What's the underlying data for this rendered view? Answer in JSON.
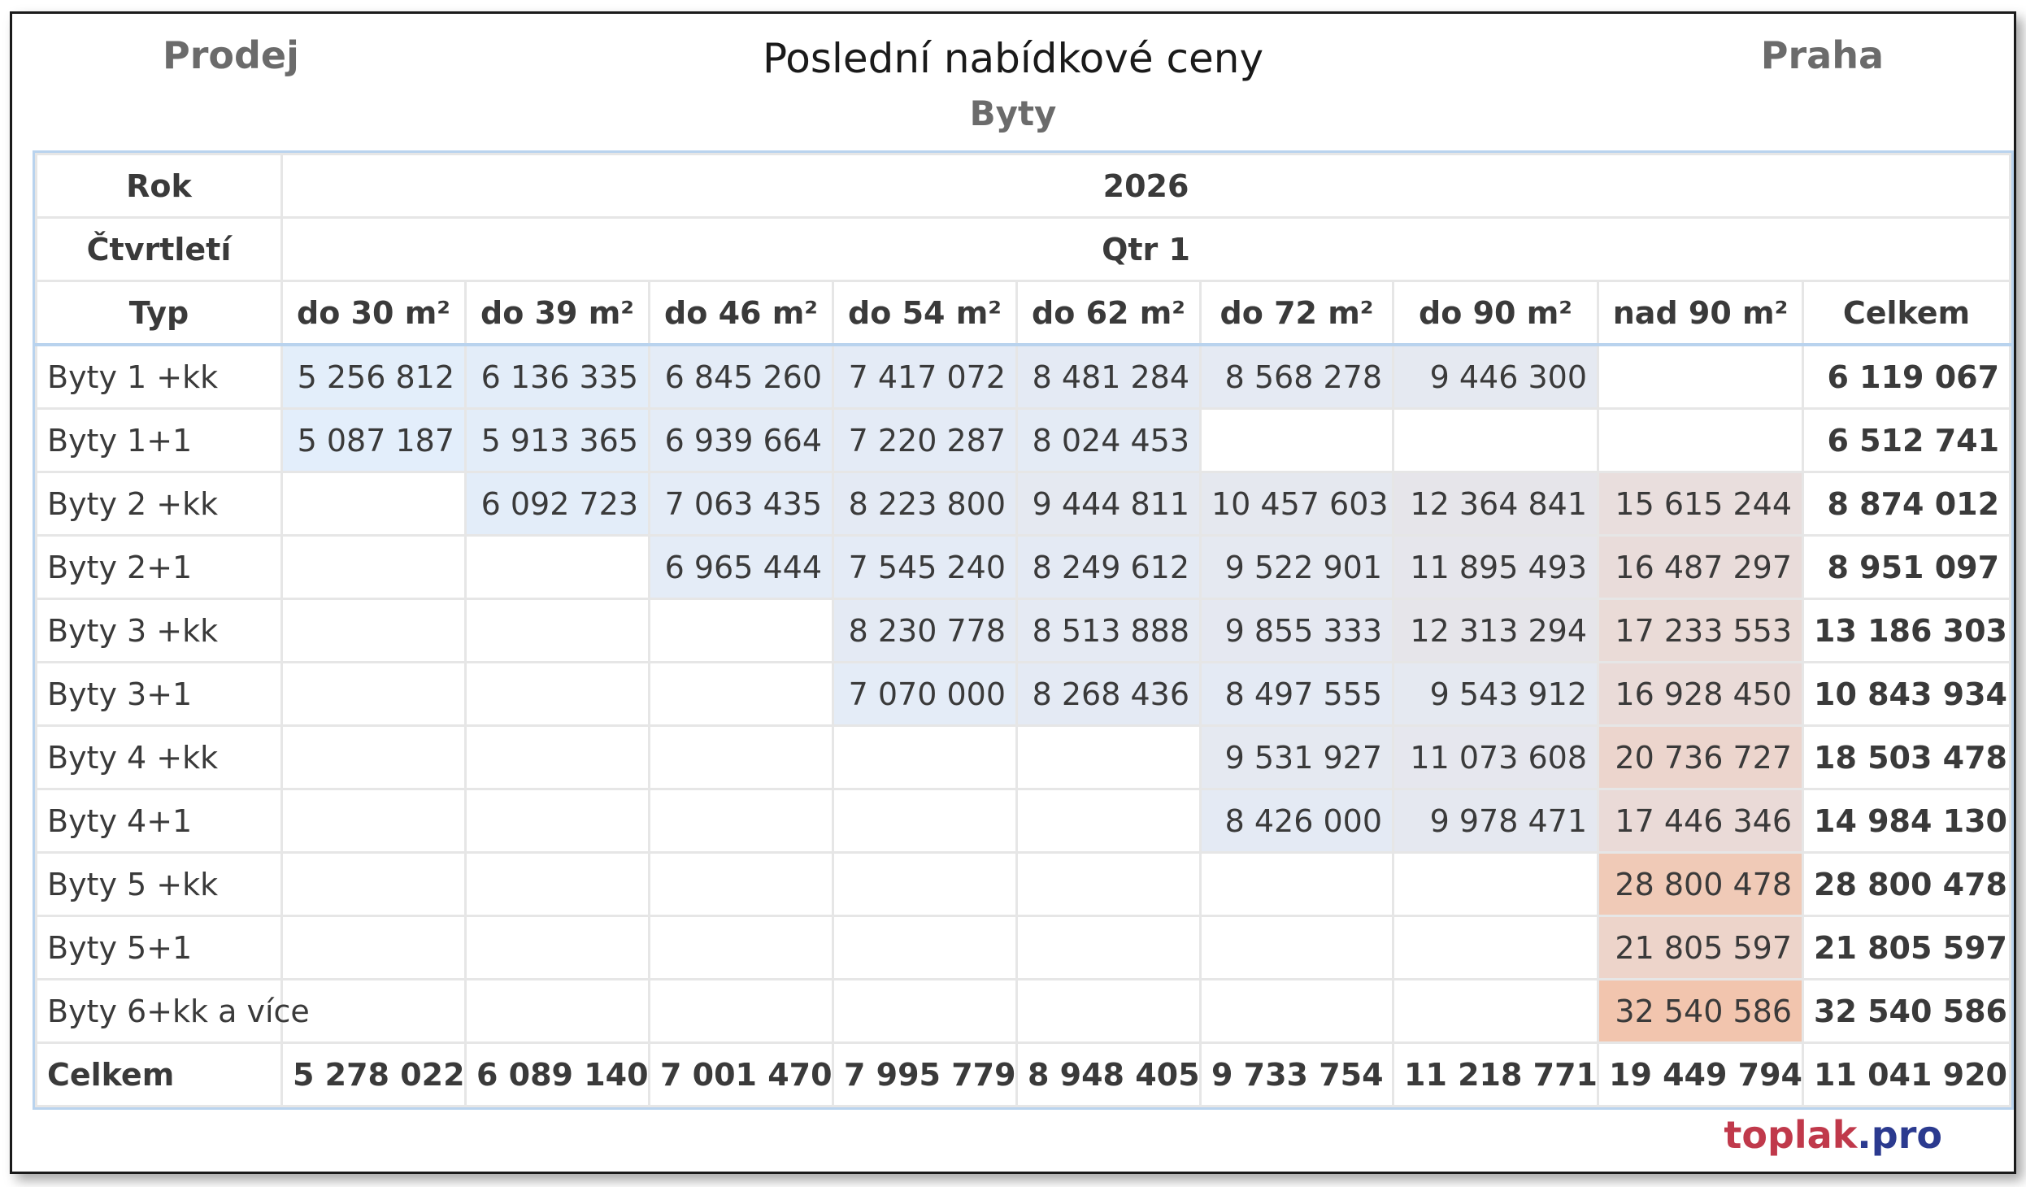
{
  "header": {
    "left": "Prodej",
    "title": "Poslední nabídkové ceny",
    "right": "Praha",
    "subtitle": "Byty"
  },
  "brand": {
    "part1": "toplak",
    "part2": ".pro"
  },
  "colors": {
    "blue_low": "#e3eefb",
    "neutral_mid": "#e6e7ee",
    "warm_high": "#f2c4ad",
    "border_accent": "#b9d3ee"
  },
  "chart_data": {
    "type": "table",
    "row_header_labels": {
      "year": "Rok",
      "quarter": "Čtvrtletí",
      "type": "Typ"
    },
    "year": "2026",
    "quarter": "Qtr 1",
    "columns": [
      "do 30 m²",
      "do 39 m²",
      "do 46 m²",
      "do 54 m²",
      "do 62 m²",
      "do 72 m²",
      "do 90 m²",
      "nad 90 m²",
      "Celkem"
    ],
    "rows": [
      {
        "label": "Byty 1 +kk",
        "values": [
          "5 256 812",
          "6 136 335",
          "6 845 260",
          "7 417 072",
          "8 481 284",
          "8 568 278",
          "9 446 300",
          "",
          "6 119 067"
        ]
      },
      {
        "label": "Byty 1+1",
        "values": [
          "5 087 187",
          "5 913 365",
          "6 939 664",
          "7 220 287",
          "8 024 453",
          "",
          "",
          "",
          "6 512 741"
        ]
      },
      {
        "label": "Byty 2 +kk",
        "values": [
          "",
          "6 092 723",
          "7 063 435",
          "8 223 800",
          "9 444 811",
          "10 457 603",
          "12 364 841",
          "15 615 244",
          "8 874 012"
        ]
      },
      {
        "label": "Byty 2+1",
        "values": [
          "",
          "",
          "6 965 444",
          "7 545 240",
          "8 249 612",
          "9 522 901",
          "11 895 493",
          "16 487 297",
          "8 951 097"
        ]
      },
      {
        "label": "Byty 3 +kk",
        "values": [
          "",
          "",
          "",
          "8 230 778",
          "8 513 888",
          "9 855 333",
          "12 313 294",
          "17 233 553",
          "13 186 303"
        ]
      },
      {
        "label": "Byty 3+1",
        "values": [
          "",
          "",
          "",
          "7 070 000",
          "8 268 436",
          "8 497 555",
          "9 543 912",
          "16 928 450",
          "10 843 934"
        ]
      },
      {
        "label": "Byty 4 +kk",
        "values": [
          "",
          "",
          "",
          "",
          "",
          "9 531 927",
          "11 073 608",
          "20 736 727",
          "18 503 478"
        ]
      },
      {
        "label": "Byty 4+1",
        "values": [
          "",
          "",
          "",
          "",
          "",
          "8 426 000",
          "9 978 471",
          "17 446 346",
          "14 984 130"
        ]
      },
      {
        "label": "Byty 5 +kk",
        "values": [
          "",
          "",
          "",
          "",
          "",
          "",
          "",
          "28 800 478",
          "28 800 478"
        ]
      },
      {
        "label": "Byty 5+1",
        "values": [
          "",
          "",
          "",
          "",
          "",
          "",
          "",
          "21 805 597",
          "21 805 597"
        ]
      },
      {
        "label": "Byty 6+kk a více",
        "values": [
          "",
          "",
          "",
          "",
          "",
          "",
          "",
          "32 540 586",
          "32 540 586"
        ]
      }
    ],
    "footer": {
      "label": "Celkem",
      "values": [
        "5 278 022",
        "6 089 140",
        "7 001 470",
        "7 995 779",
        "8 948 405",
        "9 733 754",
        "11 218 771",
        "19 449 794",
        "11 041 920"
      ]
    }
  }
}
